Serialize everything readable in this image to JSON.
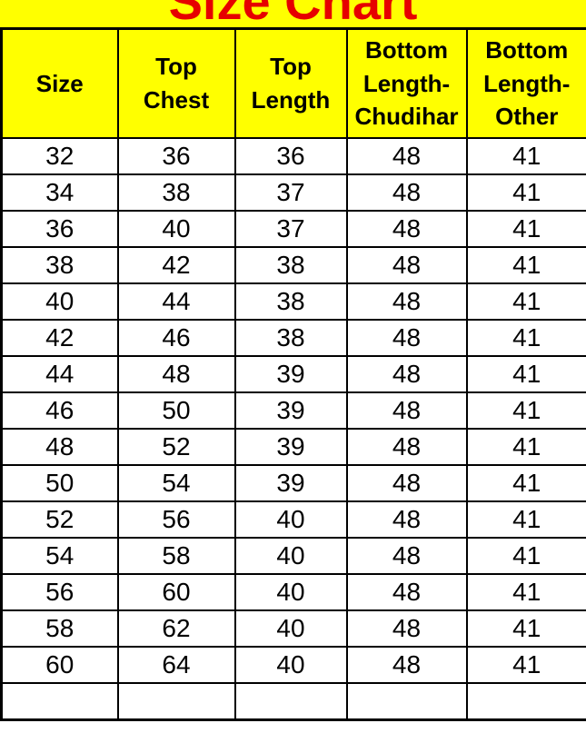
{
  "title": "Size Chart",
  "colors": {
    "header_background": "#ffff00",
    "title_color": "#e60000",
    "border_color": "#000000",
    "cell_background": "#ffffff",
    "text_color": "#000000"
  },
  "chart_data": {
    "type": "table",
    "title": "Size Chart",
    "columns": [
      "Size",
      "Top Chest",
      "Top Length",
      "Bottom Length-Chudihar",
      "Bottom Length-Other"
    ],
    "rows": [
      [
        32,
        36,
        36,
        48,
        41
      ],
      [
        34,
        38,
        37,
        48,
        41
      ],
      [
        36,
        40,
        37,
        48,
        41
      ],
      [
        38,
        42,
        38,
        48,
        41
      ],
      [
        40,
        44,
        38,
        48,
        41
      ],
      [
        42,
        46,
        38,
        48,
        41
      ],
      [
        44,
        48,
        39,
        48,
        41
      ],
      [
        46,
        50,
        39,
        48,
        41
      ],
      [
        48,
        52,
        39,
        48,
        41
      ],
      [
        50,
        54,
        39,
        48,
        41
      ],
      [
        52,
        56,
        40,
        48,
        41
      ],
      [
        54,
        58,
        40,
        48,
        41
      ],
      [
        56,
        60,
        40,
        48,
        41
      ],
      [
        58,
        62,
        40,
        48,
        41
      ],
      [
        60,
        64,
        40,
        48,
        41
      ]
    ]
  }
}
